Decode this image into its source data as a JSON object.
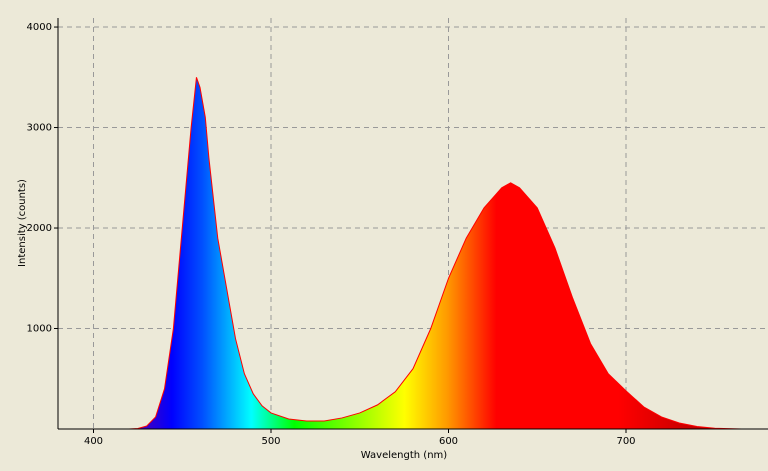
{
  "chart_data": {
    "type": "area",
    "x_label": "Wavelength (nm)",
    "y_label": "Intensity (counts)",
    "x": [
      420,
      425,
      430,
      435,
      440,
      445,
      450,
      455,
      458,
      460,
      463,
      465,
      470,
      475,
      480,
      485,
      490,
      495,
      500,
      510,
      520,
      530,
      540,
      550,
      560,
      570,
      580,
      590,
      600,
      610,
      620,
      630,
      635,
      640,
      650,
      660,
      670,
      680,
      690,
      700,
      710,
      720,
      730,
      740,
      750,
      760,
      765
    ],
    "values": [
      0,
      5,
      30,
      120,
      400,
      1000,
      2000,
      3000,
      3500,
      3400,
      3100,
      2700,
      1900,
      1400,
      900,
      550,
      350,
      230,
      160,
      100,
      80,
      80,
      110,
      160,
      240,
      370,
      600,
      1000,
      1500,
      1900,
      2200,
      2400,
      2450,
      2400,
      2200,
      1800,
      1300,
      850,
      550,
      380,
      220,
      120,
      60,
      25,
      8,
      2,
      0
    ],
    "line_color": "#ff0000",
    "xlim": [
      380,
      780
    ],
    "ylim": [
      0,
      4090
    ],
    "xticks": [
      400,
      500,
      600,
      700
    ],
    "yticks": [
      1000,
      2000,
      3000,
      4000
    ],
    "grid": true
  }
}
